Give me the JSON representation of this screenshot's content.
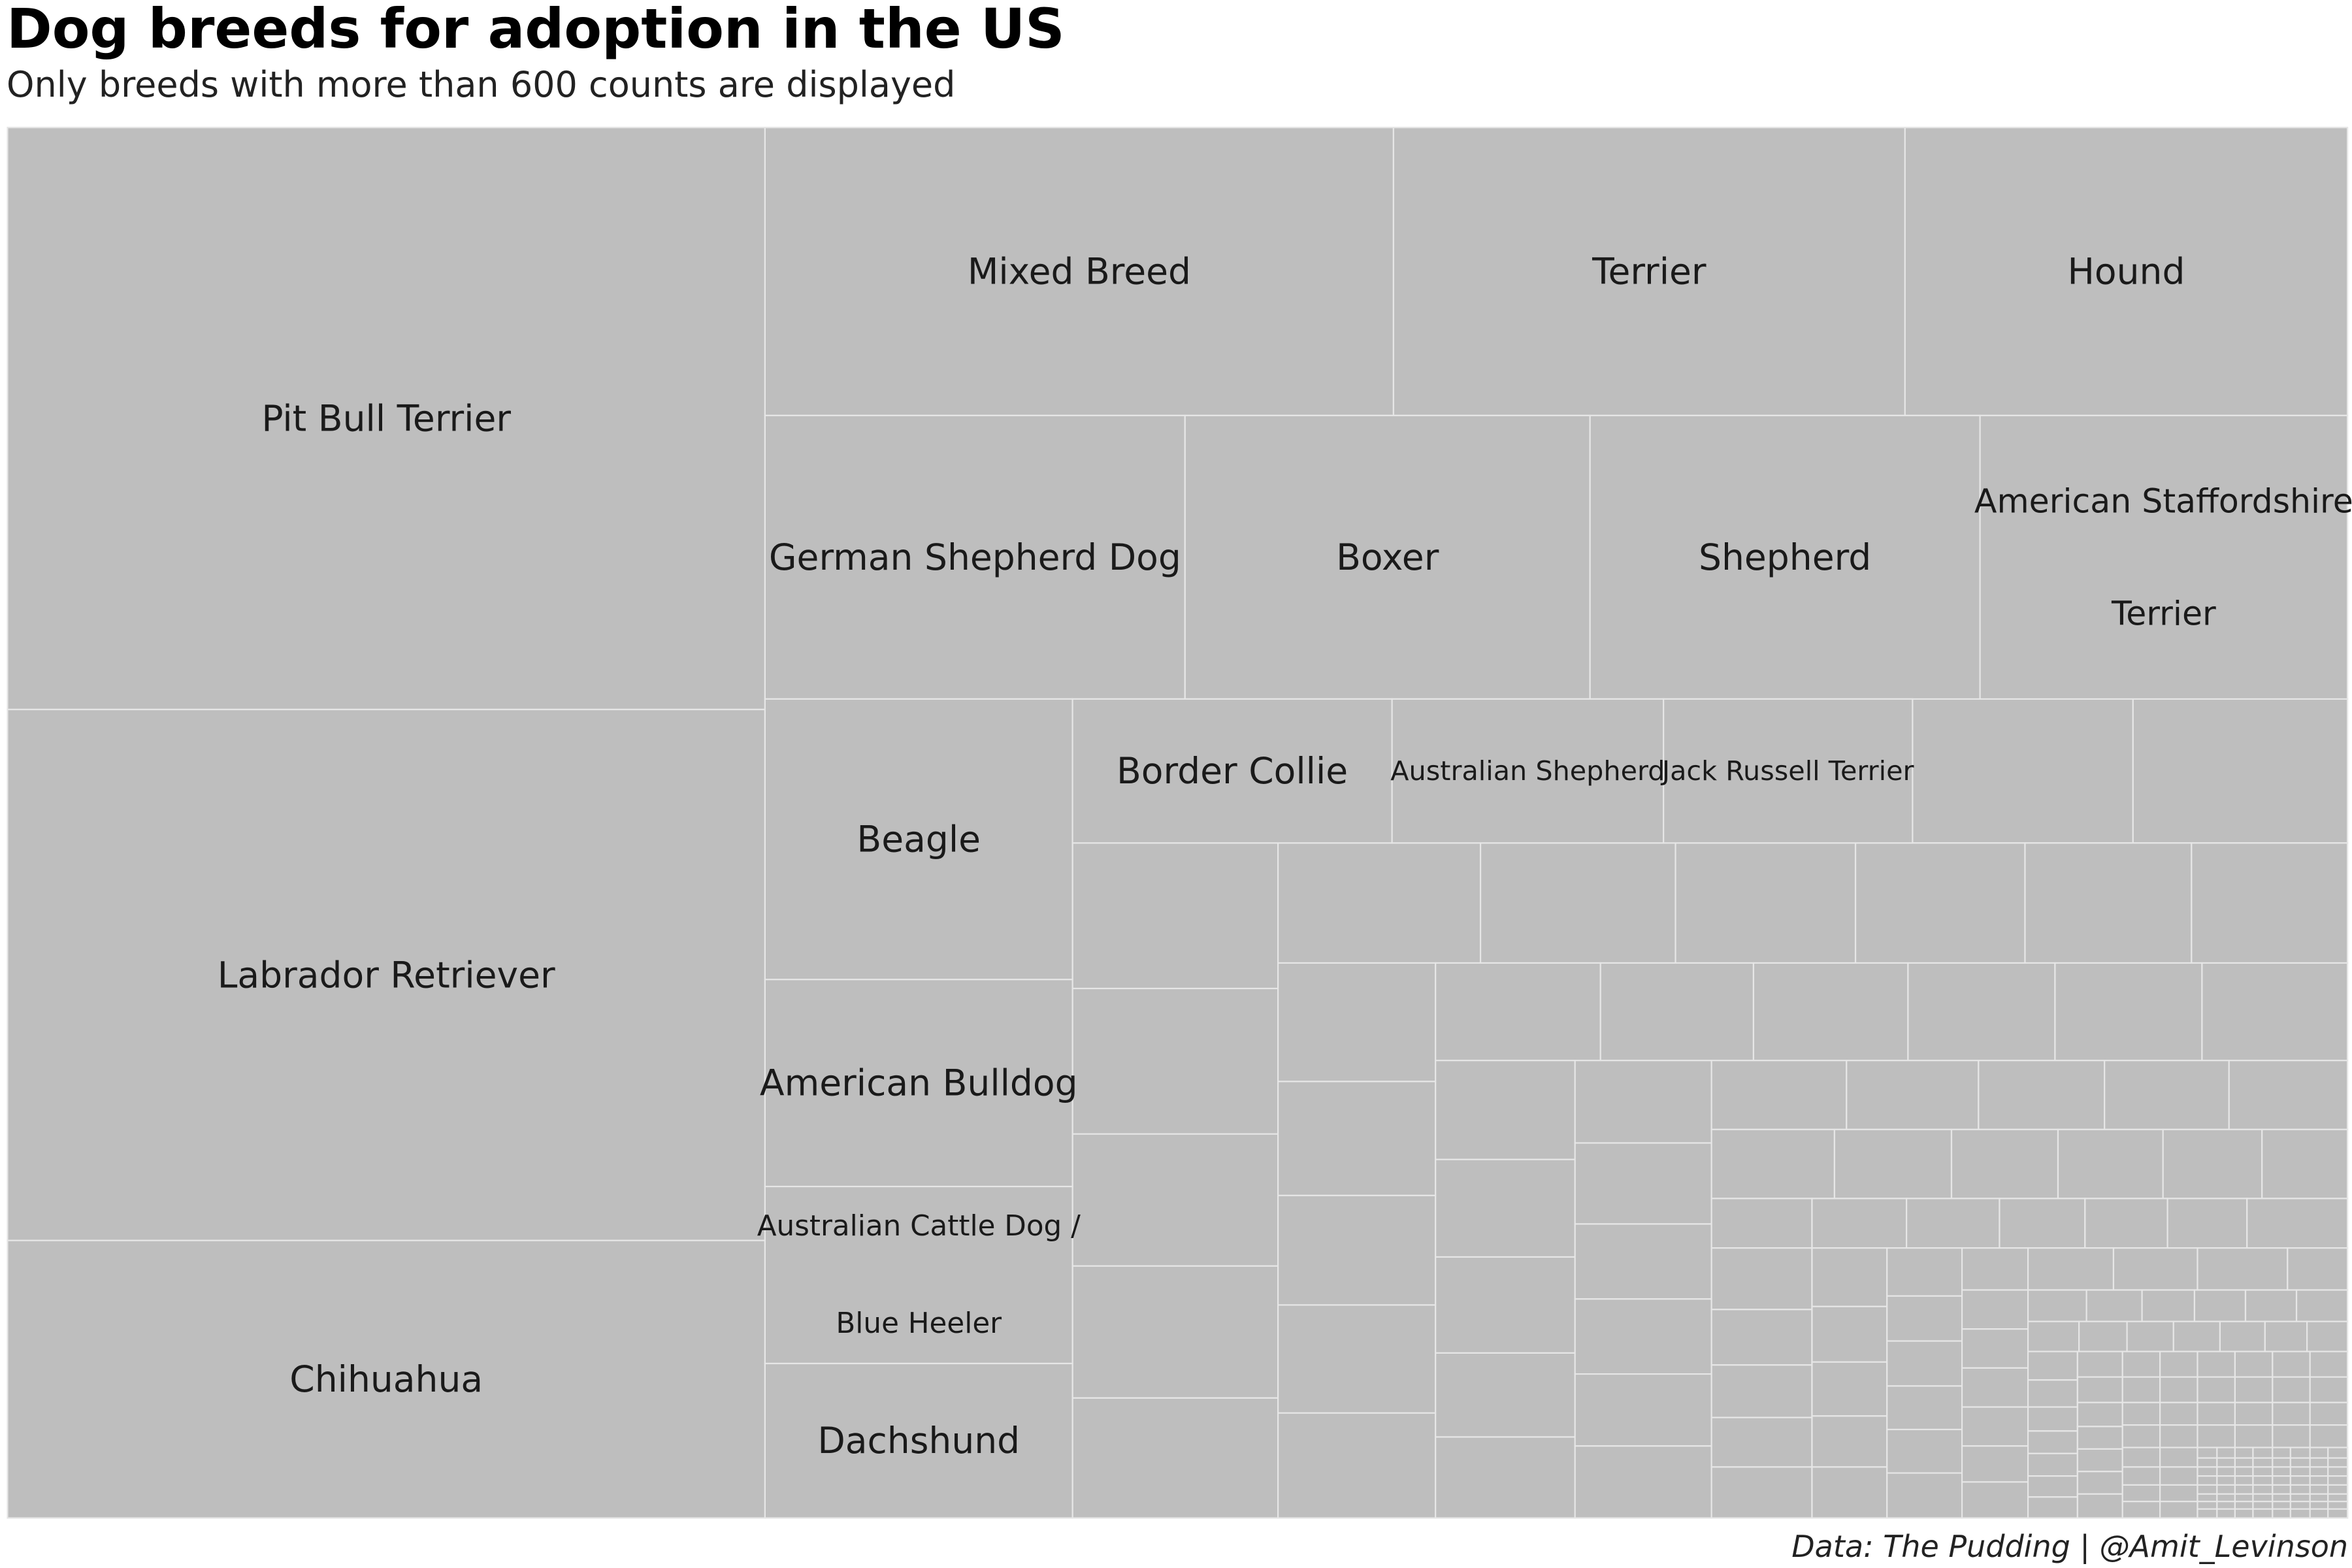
{
  "title": "Dog breeds for adoption in the US",
  "subtitle": "Only breeds with more than 600 counts are displayed",
  "caption": "Data: The Pudding | @Amit_Levinson",
  "colors": {
    "tile_fill": "#bebebe",
    "tile_border": "#e6e6e6",
    "label": "#1a1a1a"
  },
  "chart_data": {
    "type": "treemap",
    "title": "Dog breeds for adoption in the US",
    "subtitle": "Only breeds with more than 600 counts are displayed",
    "labeled_tiles": [
      {
        "label": "Pit Bull Terrier",
        "lines": [
          "Pit Bull Terrier"
        ]
      },
      {
        "label": "Labrador Retriever",
        "lines": [
          "Labrador Retriever"
        ]
      },
      {
        "label": "Chihuahua",
        "lines": [
          "Chihuahua"
        ]
      },
      {
        "label": "Mixed Breed",
        "lines": [
          "Mixed Breed"
        ]
      },
      {
        "label": "Terrier",
        "lines": [
          "Terrier"
        ]
      },
      {
        "label": "Hound",
        "lines": [
          "Hound"
        ]
      },
      {
        "label": "German Shepherd Dog",
        "lines": [
          "German Shepherd Dog"
        ]
      },
      {
        "label": "Boxer",
        "lines": [
          "Boxer"
        ]
      },
      {
        "label": "Shepherd",
        "lines": [
          "Shepherd"
        ]
      },
      {
        "label": "American Staffordshire Terrier",
        "lines": [
          "American Staffordshire",
          "Terrier"
        ]
      },
      {
        "label": "Beagle",
        "lines": [
          "Beagle"
        ]
      },
      {
        "label": "Border Collie",
        "lines": [
          "Border Collie"
        ]
      },
      {
        "label": "Australian Shepherd",
        "lines": [
          "Australian Shepherd"
        ]
      },
      {
        "label": "Jack Russell Terrier",
        "lines": [
          "Jack Russell Terrier"
        ]
      },
      {
        "label": "American Bulldog",
        "lines": [
          "American Bulldog"
        ]
      },
      {
        "label": "Australian Cattle Dog / Blue Heeler",
        "lines": [
          "Australian Cattle Dog /",
          "Blue Heeler"
        ]
      },
      {
        "label": "Dachshund",
        "lines": [
          "Dachshund"
        ]
      }
    ]
  }
}
